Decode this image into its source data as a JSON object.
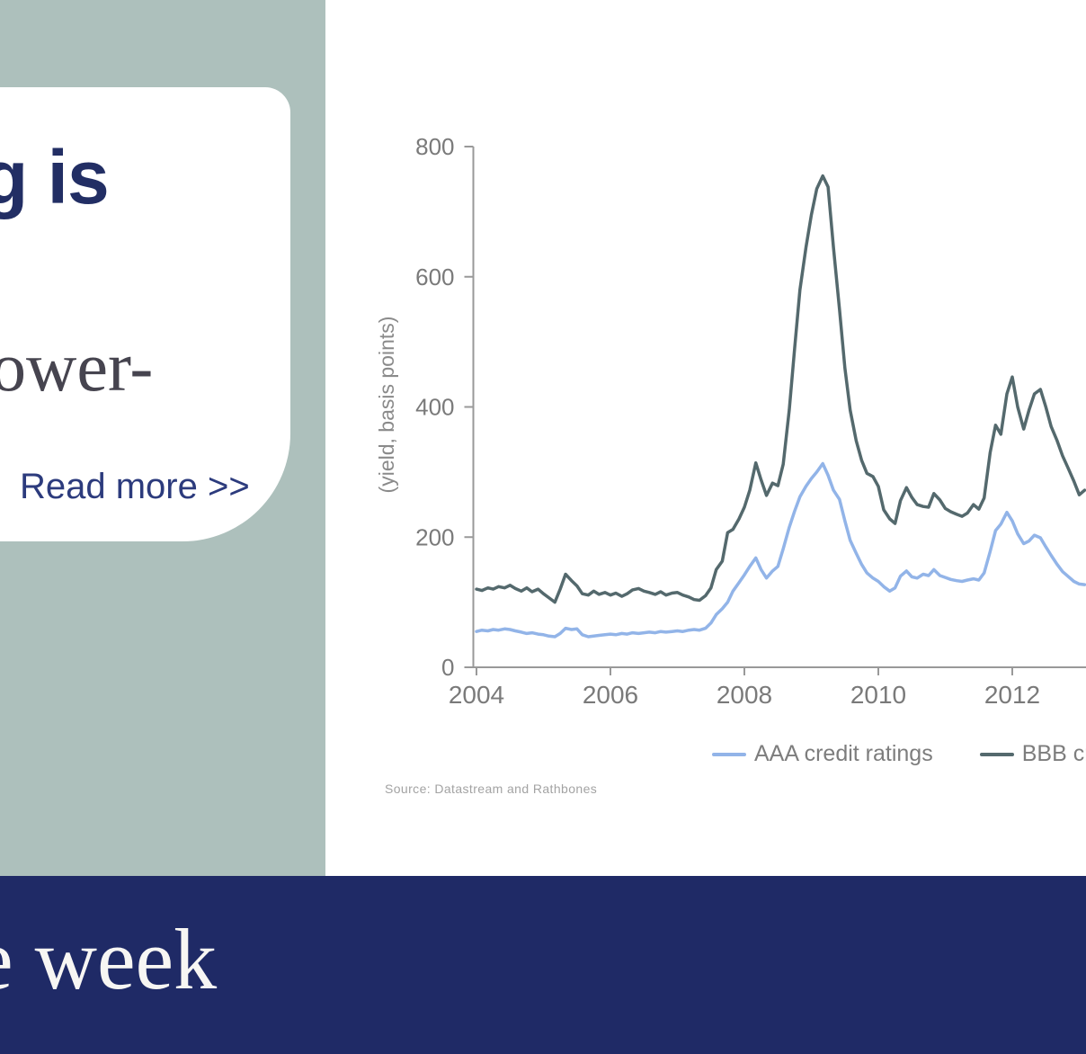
{
  "left_card": {
    "heading_fragment": "g is",
    "body_fragment": "ower-",
    "read_more_label": "Read more >>"
  },
  "footer": {
    "title_fragment": "e week"
  },
  "colors": {
    "sage_panel": "#adc0bc",
    "navy_banner": "#1f2a66",
    "heading_navy": "#222e64",
    "link_navy": "#2c3b7d",
    "card_white": "#ffffff",
    "axis_gray": "#999999",
    "tick_label_gray": "#7a7a7a",
    "legend_text_gray": "#7d7d7d",
    "source_gray": "#a3a3a3",
    "aaa_line": "#92b4e8",
    "bbb_line": "#54696d"
  },
  "chart_data": {
    "type": "line",
    "title": "",
    "xlabel": "",
    "ylabel": "(yield, basis points)",
    "source": "Source: Datastream and Rathbones",
    "xlim": [
      2004,
      2013.1
    ],
    "ylim": [
      0,
      800
    ],
    "x_ticks": [
      "2004",
      "2006",
      "2008",
      "2010",
      "2012"
    ],
    "x_tick_values": [
      2004,
      2006,
      2008,
      2010,
      2012
    ],
    "y_ticks": [
      "0",
      "200",
      "400",
      "600",
      "800"
    ],
    "y_tick_values": [
      0,
      200,
      400,
      600,
      800
    ],
    "grid": false,
    "legend_position": "bottom",
    "x": [
      2004,
      2004.08,
      2004.17,
      2004.25,
      2004.33,
      2004.42,
      2004.5,
      2004.58,
      2004.67,
      2004.75,
      2004.83,
      2004.92,
      2005,
      2005.08,
      2005.17,
      2005.25,
      2005.33,
      2005.42,
      2005.5,
      2005.58,
      2005.67,
      2005.75,
      2005.83,
      2005.92,
      2006,
      2006.08,
      2006.17,
      2006.25,
      2006.33,
      2006.42,
      2006.5,
      2006.58,
      2006.67,
      2006.75,
      2006.83,
      2006.92,
      2007,
      2007.08,
      2007.17,
      2007.25,
      2007.33,
      2007.42,
      2007.5,
      2007.58,
      2007.67,
      2007.75,
      2007.83,
      2007.92,
      2008,
      2008.08,
      2008.17,
      2008.25,
      2008.33,
      2008.42,
      2008.5,
      2008.58,
      2008.67,
      2008.75,
      2008.83,
      2008.92,
      2009,
      2009.08,
      2009.17,
      2009.25,
      2009.33,
      2009.42,
      2009.5,
      2009.58,
      2009.67,
      2009.75,
      2009.83,
      2009.92,
      2010,
      2010.08,
      2010.17,
      2010.25,
      2010.33,
      2010.42,
      2010.5,
      2010.58,
      2010.67,
      2010.75,
      2010.83,
      2010.92,
      2011,
      2011.08,
      2011.17,
      2011.25,
      2011.33,
      2011.42,
      2011.5,
      2011.58,
      2011.67,
      2011.75,
      2011.83,
      2011.92,
      2012,
      2012.08,
      2012.17,
      2012.25,
      2012.33,
      2012.42,
      2012.5,
      2012.58,
      2012.67,
      2012.75,
      2012.83,
      2012.92,
      2013,
      2013.08
    ],
    "series": [
      {
        "name": "AAA credit ratings",
        "color": "#92b4e8",
        "values": [
          55,
          57,
          56,
          58,
          57,
          59,
          58,
          56,
          54,
          52,
          53,
          51,
          50,
          48,
          47,
          52,
          60,
          58,
          59,
          50,
          47,
          48,
          49,
          50,
          51,
          50,
          52,
          51,
          53,
          52,
          53,
          54,
          53,
          55,
          54,
          55,
          56,
          55,
          57,
          58,
          57,
          60,
          68,
          81,
          90,
          100,
          117,
          130,
          142,
          155,
          168,
          150,
          137,
          148,
          155,
          182,
          215,
          240,
          262,
          278,
          290,
          300,
          313,
          295,
          272,
          258,
          225,
          195,
          175,
          158,
          145,
          137,
          132,
          124,
          117,
          122,
          140,
          148,
          139,
          137,
          143,
          141,
          150,
          141,
          138,
          135,
          133,
          132,
          134,
          136,
          134,
          145,
          178,
          210,
          220,
          238,
          225,
          205,
          190,
          194,
          203,
          199,
          185,
          172,
          158,
          147,
          140,
          132,
          128,
          127
        ]
      },
      {
        "name": "BBB credit ratings",
        "color": "#54696d",
        "values": [
          120,
          118,
          122,
          120,
          124,
          122,
          126,
          121,
          117,
          122,
          116,
          120,
          113,
          107,
          100,
          120,
          143,
          133,
          125,
          113,
          111,
          117,
          112,
          115,
          111,
          114,
          109,
          113,
          119,
          121,
          117,
          115,
          112,
          116,
          111,
          114,
          115,
          111,
          108,
          104,
          103,
          110,
          122,
          150,
          163,
          207,
          212,
          228,
          246,
          272,
          314,
          288,
          264,
          283,
          279,
          312,
          395,
          490,
          580,
          645,
          695,
          735,
          755,
          738,
          645,
          550,
          460,
          395,
          348,
          318,
          298,
          293,
          278,
          242,
          228,
          221,
          256,
          276,
          261,
          250,
          247,
          246,
          267,
          257,
          244,
          239,
          235,
          232,
          237,
          250,
          243,
          260,
          330,
          372,
          358,
          420,
          446,
          400,
          366,
          395,
          420,
          427,
          400,
          370,
          348,
          325,
          307,
          286,
          265,
          272
        ]
      }
    ]
  }
}
